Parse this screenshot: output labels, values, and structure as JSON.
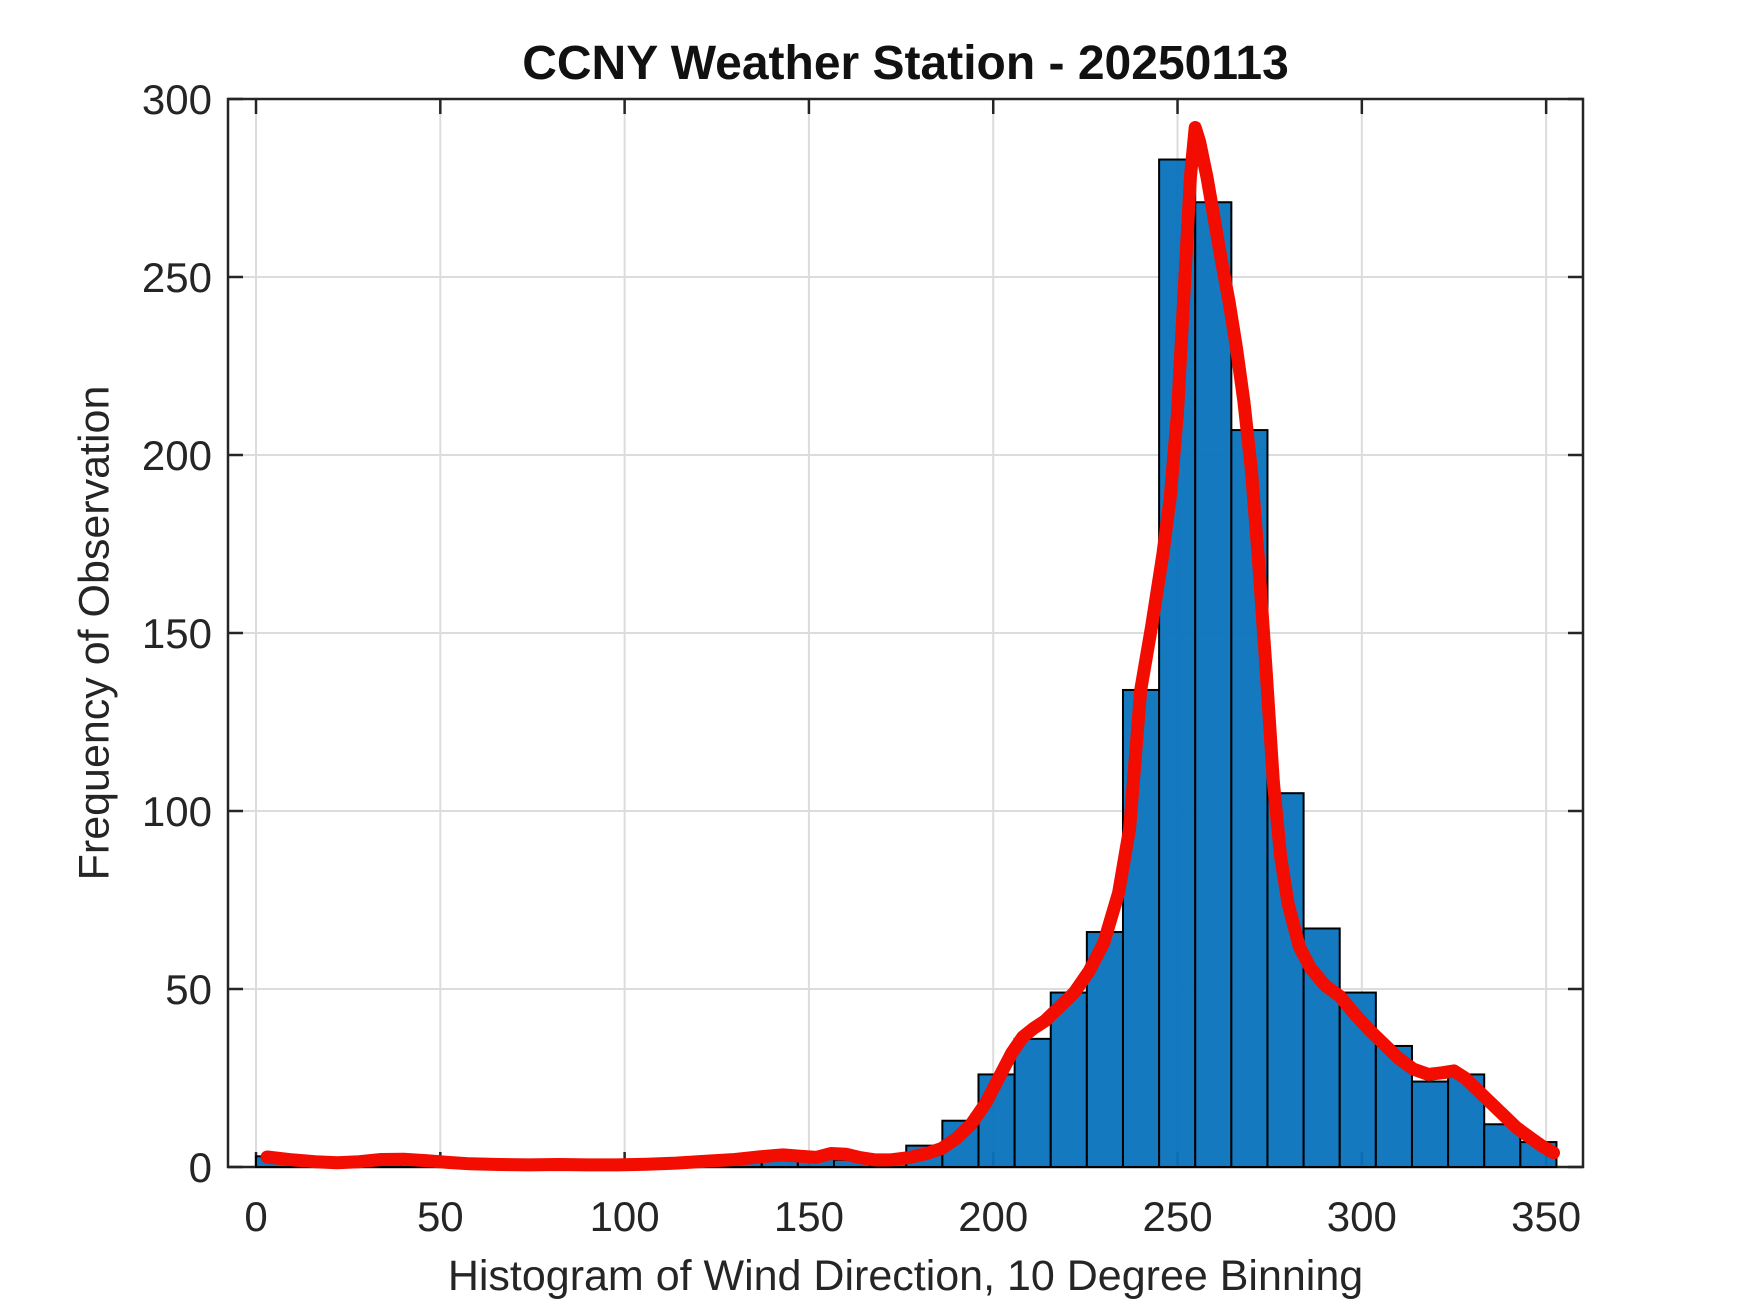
{
  "figure": {
    "background": "#ffffff"
  },
  "chart_data": {
    "type": "bar",
    "subtype": "histogram_with_density_line",
    "title": "CCNY Weather Station - 20250113",
    "xlabel": "Histogram of Wind Direction, 10 Degree Binning",
    "ylabel": "Frequency of Observation",
    "xlim": [
      -7.6,
      360
    ],
    "ylim": [
      0,
      300
    ],
    "xticks": [
      0,
      50,
      100,
      150,
      200,
      250,
      300,
      350
    ],
    "yticks": [
      0,
      50,
      100,
      150,
      200,
      250,
      300
    ],
    "grid": true,
    "legend": false,
    "bin_start": 0,
    "bin_width": 9.8,
    "bin_unit": "degrees",
    "frequencies": [
      3,
      1,
      0,
      1,
      1,
      0,
      0,
      0,
      0,
      0,
      0,
      1,
      2,
      2,
      4,
      3,
      2,
      2,
      6,
      13,
      26,
      36,
      49,
      66,
      134,
      283,
      271,
      207,
      105,
      67,
      49,
      34,
      24,
      26,
      12,
      7
    ],
    "density_line": {
      "name": "smoothed density curve",
      "points": [
        [
          3,
          2.8
        ],
        [
          10,
          2.0
        ],
        [
          16,
          1.5
        ],
        [
          22,
          1.2
        ],
        [
          28,
          1.5
        ],
        [
          34,
          2.1
        ],
        [
          40,
          2.2
        ],
        [
          46,
          1.8
        ],
        [
          52,
          1.3
        ],
        [
          58,
          0.9
        ],
        [
          66,
          0.7
        ],
        [
          74,
          0.6
        ],
        [
          82,
          0.7
        ],
        [
          90,
          0.6
        ],
        [
          98,
          0.6
        ],
        [
          106,
          0.8
        ],
        [
          114,
          1.1
        ],
        [
          122,
          1.6
        ],
        [
          130,
          2.1
        ],
        [
          137,
          2.9
        ],
        [
          143,
          3.4
        ],
        [
          148,
          3.0
        ],
        [
          152,
          2.7
        ],
        [
          156,
          3.8
        ],
        [
          160,
          3.6
        ],
        [
          164,
          2.6
        ],
        [
          168,
          2.0
        ],
        [
          172,
          2.0
        ],
        [
          177,
          2.6
        ],
        [
          182,
          3.8
        ],
        [
          186,
          5.2
        ],
        [
          190,
          8.0
        ],
        [
          194,
          12.0
        ],
        [
          198,
          18.0
        ],
        [
          202,
          26.0
        ],
        [
          205,
          32.0
        ],
        [
          208,
          36.5
        ],
        [
          211,
          39.0
        ],
        [
          214,
          41.0
        ],
        [
          218,
          45.0
        ],
        [
          222,
          49.0
        ],
        [
          226,
          55.0
        ],
        [
          230,
          63.0
        ],
        [
          234,
          77.0
        ],
        [
          237,
          95.0
        ],
        [
          240,
          134.0
        ],
        [
          243,
          152.0
        ],
        [
          246,
          172.0
        ],
        [
          248,
          188.0
        ],
        [
          250,
          212.0
        ],
        [
          252,
          250.0
        ],
        [
          253.5,
          278.0
        ],
        [
          254.8,
          292.0
        ],
        [
          256,
          288.0
        ],
        [
          258,
          278.0
        ],
        [
          260,
          266.0
        ],
        [
          262,
          254.0
        ],
        [
          264,
          243.0
        ],
        [
          266,
          230.0
        ],
        [
          268,
          215.0
        ],
        [
          270,
          196.0
        ],
        [
          272,
          170.0
        ],
        [
          274,
          140.0
        ],
        [
          276,
          108.0
        ],
        [
          278,
          87.0
        ],
        [
          280,
          74.0
        ],
        [
          283,
          62.0
        ],
        [
          286,
          56.0
        ],
        [
          290,
          51.0
        ],
        [
          294,
          48.0
        ],
        [
          298,
          43.0
        ],
        [
          302,
          38.5
        ],
        [
          306,
          34.5
        ],
        [
          310,
          30.5
        ],
        [
          314,
          27.5
        ],
        [
          318,
          26.0
        ],
        [
          322,
          26.5
        ],
        [
          325,
          27.0
        ],
        [
          328,
          25.0
        ],
        [
          331,
          22.0
        ],
        [
          334,
          19.0
        ],
        [
          338,
          15.0
        ],
        [
          342,
          11.0
        ],
        [
          346,
          8.0
        ],
        [
          349,
          5.8
        ],
        [
          352,
          4.0
        ]
      ]
    },
    "colors": {
      "bar_fill": "#0872bd",
      "bar_edge": "#000000",
      "density_line": "#f20d00",
      "grid": "#dcdcdc",
      "axis": "#252525",
      "title_text": "#111111",
      "label_text": "#252525"
    }
  }
}
